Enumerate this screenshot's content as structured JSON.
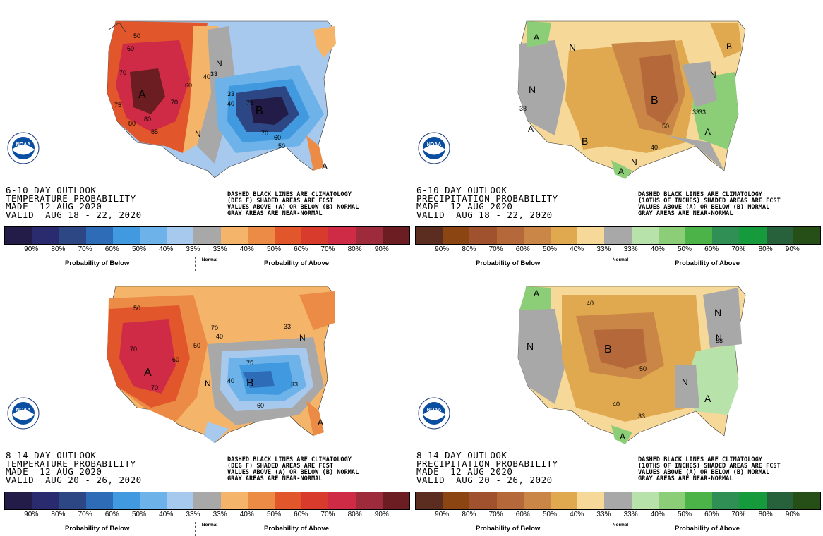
{
  "colors": {
    "temp_below": [
      "#241c48",
      "#2a2a6e",
      "#2d4784",
      "#2e6cb7",
      "#419ae0",
      "#6db3ea",
      "#a7c9ee"
    ],
    "normal": "#a8a8a8",
    "temp_above": [
      "#f4b56b",
      "#eb8b45",
      "#e2562b",
      "#d83a2b",
      "#cf2a46",
      "#9e2b3c",
      "#6b1d22"
    ],
    "precip_below": [
      "#5a2d20",
      "#8b4513",
      "#a0512d",
      "#b5693a",
      "#c98646",
      "#e0a94f",
      "#f6d898"
    ],
    "precip_above": [
      "#b7e2a9",
      "#8ccd78",
      "#4bb347",
      "#2f8f54",
      "#169b3c",
      "#27613b",
      "#254f17"
    ]
  },
  "legend": {
    "ticks": [
      "90%",
      "80%",
      "70%",
      "60%",
      "50%",
      "40%",
      "33%",
      "33%",
      "40%",
      "50%",
      "60%",
      "70%",
      "80%",
      "90%"
    ],
    "below_caption": "Probability of Below",
    "above_caption": "Probability of Above",
    "normal_caption": "Normal"
  },
  "logo": {
    "label": "NOAA"
  },
  "panels": [
    {
      "title1": "6-10 DAY OUTLOOK",
      "title2": "TEMPERATURE PROBABILITY",
      "made": "MADE  12 AUG 2020",
      "valid": "VALID  AUG 18 - 22, 2020",
      "note1": "DASHED BLACK LINES ARE CLIMATOLOGY",
      "note2": "(DEG F) SHADED AREAS ARE FCST",
      "note3": "VALUES ABOVE (A) OR BELOW (B) NORMAL",
      "note4": "GRAY AREAS ARE NEAR-NORMAL",
      "labels": [
        "A",
        "B",
        "A",
        "N",
        "N",
        "50",
        "60",
        "70",
        "80",
        "75",
        "70",
        "60",
        "50",
        "40",
        "33",
        "33",
        "40",
        "70",
        "80",
        "85",
        "75",
        "60"
      ]
    },
    {
      "title1": "6-10 DAY OUTLOOK",
      "title2": "PRECIPITATION PROBABILITY",
      "made": "MADE  12 AUG 2020",
      "valid": "VALID  AUG 18 - 22, 2020",
      "note1": "DASHED BLACK LINES ARE CLIMATOLOGY",
      "note2": "(10THS OF INCHES) SHADED AREAS ARE FCST",
      "note3": "VALUES ABOVE (A) OR BELOW (B) NORMAL",
      "note4": "GRAY AREAS ARE NEAR-NORMAL",
      "labels": [
        "A",
        "N",
        "N",
        "B",
        "B",
        "B",
        "N",
        "A",
        "A",
        "A",
        "N",
        "33",
        "33",
        "50",
        "40",
        "33"
      ]
    },
    {
      "title1": "8-14 DAY OUTLOOK",
      "title2": "TEMPERATURE PROBABILITY",
      "made": "MADE  12 AUG 2020",
      "valid": "VALID  AUG 20 - 26, 2020",
      "note1": "DASHED BLACK LINES ARE CLIMATOLOGY",
      "note2": "(DEG F) SHADED AREAS ARE FCST",
      "note3": "VALUES ABOVE (A) OR BELOW (B) NORMAL",
      "note4": "GRAY AREAS ARE NEAR-NORMAL",
      "labels": [
        "A",
        "B",
        "A",
        "N",
        "N",
        "60",
        "70",
        "50",
        "70",
        "75",
        "60",
        "40",
        "33",
        "33",
        "50",
        "40",
        "70"
      ]
    },
    {
      "title1": "8-14 DAY OUTLOOK",
      "title2": "PRECIPITATION PROBABILITY",
      "made": "MADE  12 AUG 2020",
      "valid": "VALID  AUG 20 - 26, 2020",
      "note1": "DASHED BLACK LINES ARE CLIMATOLOGY",
      "note2": "(10THS OF INCHES) SHADED AREAS ARE FCST",
      "note3": "VALUES ABOVE (A) OR BELOW (B) NORMAL",
      "note4": "GRAY AREAS ARE NEAR-NORMAL",
      "labels": [
        "A",
        "N",
        "N",
        "B",
        "N",
        "A",
        "A",
        "N",
        "40",
        "50",
        "40",
        "33",
        "33"
      ]
    }
  ]
}
